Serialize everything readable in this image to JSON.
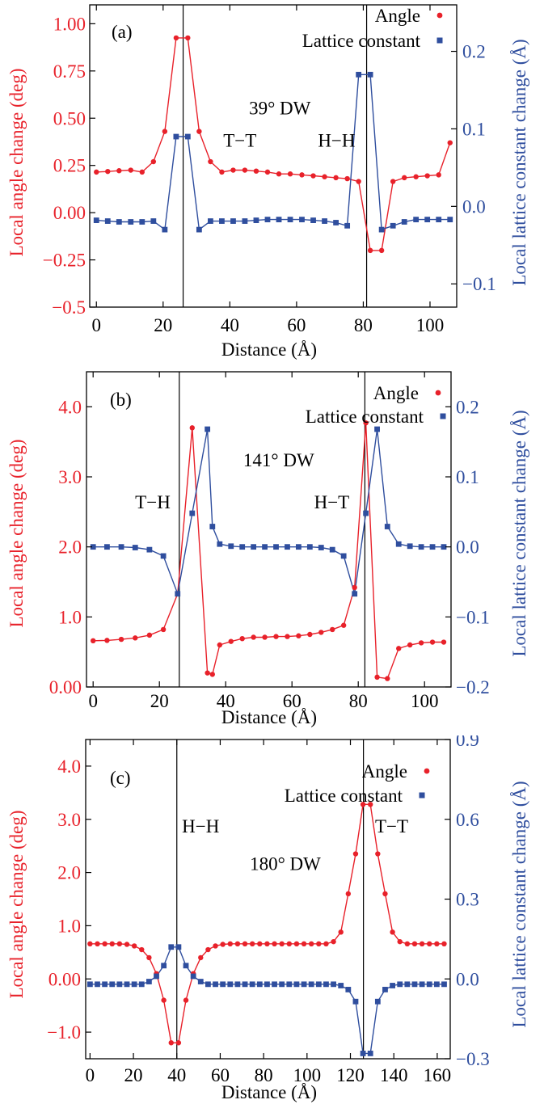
{
  "chart_data": [
    {
      "type": "line",
      "panel_label": "(a)",
      "xlabel": "Distance (Å)",
      "ylabel_left": "Local angle change (deg)",
      "ylabel_right": "Local lattice constant change (Å)",
      "xlim": [
        -2,
        108
      ],
      "ylim_left": [
        -0.5,
        1.1
      ],
      "ylim_right": [
        -0.13,
        0.26
      ],
      "xticks": [
        0,
        20,
        40,
        60,
        80,
        100
      ],
      "xtick_labels": [
        "0",
        "20",
        "40",
        "60",
        "80",
        "100"
      ],
      "yticks_left": [
        -0.5,
        -0.25,
        0,
        0.25,
        0.5,
        0.75,
        1.0
      ],
      "ytick_labels_left": [
        "−0.5",
        "−0.25",
        "0.00",
        "0.25",
        "0.50",
        "0.75",
        "1.00"
      ],
      "yticks_right": [
        -0.1,
        0,
        0.1,
        0.2
      ],
      "ytick_labels_right": [
        "−0.1",
        "0.0",
        "0.1",
        "0.2"
      ],
      "legend": [
        {
          "label": "Angle",
          "color": "#e8212a",
          "marker": "circle"
        },
        {
          "label": "Lattice constant",
          "color": "#2f4e9e",
          "marker": "square"
        }
      ],
      "walls": [
        26,
        81
      ],
      "annotations": [
        {
          "text": "39° DW",
          "x": 55,
          "y": 0.52
        },
        {
          "text": "T−T",
          "x": 43,
          "y": 0.35
        },
        {
          "text": "H−H",
          "x": 72,
          "y": 0.35
        }
      ],
      "series": [
        {
          "name": "Angle",
          "axis": "left",
          "color": "#e8212a",
          "marker": "circle",
          "x": [
            0,
            3.4,
            6.8,
            10.3,
            13.7,
            17.1,
            20.5,
            23.9,
            27.4,
            30.8,
            34.2,
            37.6,
            41.0,
            44.5,
            47.9,
            51.3,
            54.7,
            58.1,
            61.6,
            65.0,
            68.4,
            71.8,
            75.2,
            78.6,
            82.1,
            85.5,
            88.9,
            92.3,
            95.8,
            99.2,
            102.6,
            106.0
          ],
          "y": [
            0.215,
            0.218,
            0.222,
            0.225,
            0.215,
            0.27,
            0.43,
            0.925,
            0.925,
            0.43,
            0.27,
            0.215,
            0.225,
            0.225,
            0.22,
            0.215,
            0.205,
            0.205,
            0.2,
            0.195,
            0.19,
            0.185,
            0.18,
            0.165,
            -0.2,
            -0.2,
            0.165,
            0.185,
            0.19,
            0.195,
            0.2,
            0.37
          ]
        },
        {
          "name": "Lattice constant",
          "axis": "right",
          "color": "#2f4e9e",
          "marker": "square",
          "x": [
            0,
            3.4,
            6.8,
            10.3,
            13.7,
            17.1,
            20.5,
            23.9,
            27.4,
            30.8,
            34.2,
            37.6,
            41.0,
            44.5,
            47.9,
            51.3,
            54.7,
            58.1,
            61.6,
            65.0,
            68.4,
            71.8,
            75.2,
            78.6,
            82.1,
            85.5,
            88.9,
            92.3,
            95.8,
            99.2,
            102.6,
            106.0
          ],
          "y": [
            -0.018,
            -0.019,
            -0.02,
            -0.02,
            -0.02,
            -0.019,
            -0.03,
            0.09,
            0.09,
            -0.03,
            -0.019,
            -0.019,
            -0.019,
            -0.019,
            -0.018,
            -0.017,
            -0.017,
            -0.017,
            -0.017,
            -0.018,
            -0.019,
            -0.021,
            -0.025,
            0.17,
            0.17,
            -0.03,
            -0.025,
            -0.02,
            -0.017,
            -0.017,
            -0.017,
            -0.017
          ]
        }
      ]
    },
    {
      "type": "line",
      "panel_label": "(b)",
      "xlabel": "Distance (Å)",
      "ylabel_left": "Local angle change (deg)",
      "ylabel_right": "Local lattice constant change (Å)",
      "xlim": [
        -2,
        108
      ],
      "ylim_left": [
        0,
        4.5
      ],
      "ylim_right": [
        -0.2,
        0.25
      ],
      "xticks": [
        0,
        20,
        40,
        60,
        80,
        100
      ],
      "xtick_labels": [
        "0",
        "20",
        "40",
        "60",
        "80",
        "100"
      ],
      "yticks_left": [
        0,
        1,
        2,
        3,
        4
      ],
      "ytick_labels_left": [
        "0.00",
        "1.0",
        "2.0",
        "3.0",
        "4.0"
      ],
      "yticks_right": [
        -0.2,
        -0.1,
        0,
        0.1,
        0.2
      ],
      "ytick_labels_right": [
        "−0.2",
        "−0.1",
        "0.0",
        "0.1",
        "0.2"
      ],
      "legend": [
        {
          "label": "Angle",
          "color": "#e8212a",
          "marker": "circle"
        },
        {
          "label": "Lattice constant",
          "color": "#2f4e9e",
          "marker": "square"
        }
      ],
      "walls": [
        26,
        82
      ],
      "annotations": [
        {
          "text": "141° DW",
          "x": 56,
          "y": 3.15
        },
        {
          "text": "T−H",
          "x": 18,
          "y": 2.55
        },
        {
          "text": "H−T",
          "x": 72,
          "y": 2.55
        }
      ],
      "series": [
        {
          "name": "Angle",
          "axis": "left",
          "color": "#e8212a",
          "marker": "circle",
          "x": [
            0,
            4.2,
            8.5,
            12.7,
            17.0,
            21.2,
            25.5,
            29.9,
            34.5,
            36.0,
            38.2,
            41.6,
            45.0,
            48.4,
            51.8,
            55.2,
            58.6,
            62.0,
            65.4,
            68.8,
            72.2,
            75.6,
            78.9,
            82.3,
            85.7,
            88.8,
            92.2,
            95.6,
            99.0,
            102.4,
            105.8
          ],
          "y": [
            0.66,
            0.665,
            0.68,
            0.7,
            0.74,
            0.82,
            1.33,
            3.7,
            0.2,
            0.18,
            0.6,
            0.65,
            0.69,
            0.71,
            0.71,
            0.72,
            0.72,
            0.73,
            0.75,
            0.78,
            0.82,
            0.88,
            1.42,
            3.77,
            0.14,
            0.12,
            0.55,
            0.6,
            0.63,
            0.64,
            0.64
          ]
        },
        {
          "name": "Lattice constant",
          "axis": "right",
          "color": "#2f4e9e",
          "marker": "square",
          "x": [
            0,
            4.2,
            8.5,
            12.7,
            17.0,
            21.2,
            25.5,
            29.9,
            34.5,
            36.0,
            38.2,
            41.6,
            45.0,
            48.4,
            51.8,
            55.2,
            58.6,
            62.0,
            65.4,
            68.8,
            72.2,
            75.6,
            78.9,
            82.3,
            85.7,
            88.8,
            92.2,
            95.6,
            99.0,
            102.4,
            105.8
          ],
          "y": [
            0.0,
            0.0,
            0.0,
            -0.001,
            -0.004,
            -0.013,
            -0.067,
            0.048,
            0.168,
            0.029,
            0.004,
            0.001,
            0.0,
            0.0,
            0.0,
            0.0,
            0.0,
            0.0,
            0.0,
            -0.001,
            -0.004,
            -0.013,
            -0.067,
            0.048,
            0.168,
            0.029,
            0.004,
            0.001,
            0.0,
            0.0,
            0.0
          ]
        }
      ]
    },
    {
      "type": "line",
      "panel_label": "(c)",
      "xlabel": "Distance (Å)",
      "ylabel_left": "Local angle change (deg)",
      "ylabel_right": "Local lattice constant change (Å)",
      "xlim": [
        -2,
        166
      ],
      "ylim_left": [
        -1.5,
        4.5
      ],
      "ylim_right": [
        -0.3,
        0.9
      ],
      "xticks": [
        0,
        20,
        40,
        60,
        80,
        100,
        120,
        140,
        160
      ],
      "xtick_labels": [
        "0",
        "20",
        "40",
        "60",
        "80",
        "100",
        "120",
        "140",
        "160"
      ],
      "yticks_left": [
        -1,
        0,
        1,
        2,
        3,
        4
      ],
      "ytick_labels_left": [
        "−1.0",
        "0.00",
        "1.0",
        "2.0",
        "3.0",
        "4.0"
      ],
      "yticks_right": [
        -0.3,
        0,
        0.3,
        0.6,
        0.9
      ],
      "ytick_labels_right": [
        "−0.3",
        "0.0",
        "0.3",
        "0.6",
        "0.9"
      ],
      "legend": [
        {
          "label": "Angle",
          "color": "#e8212a",
          "marker": "circle"
        },
        {
          "label": "Lattice constant",
          "color": "#2f4e9e",
          "marker": "square"
        }
      ],
      "walls": [
        40,
        126
      ],
      "annotations": [
        {
          "text": "H−H",
          "x": 51,
          "y": 2.75
        },
        {
          "text": "180° DW",
          "x": 90,
          "y": 2.05
        },
        {
          "text": "T−T",
          "x": 139,
          "y": 2.75
        }
      ],
      "series": [
        {
          "name": "Angle",
          "axis": "left",
          "color": "#e8212a",
          "marker": "circle",
          "x": [
            0,
            3.4,
            6.8,
            10.2,
            13.6,
            17.0,
            20.4,
            23.8,
            27.2,
            30.6,
            34.0,
            37.4,
            40.8,
            44.2,
            47.6,
            51.0,
            54.4,
            57.8,
            61.2,
            64.6,
            68.0,
            71.4,
            74.8,
            78.2,
            81.6,
            85.0,
            88.4,
            91.8,
            95.2,
            98.6,
            102.0,
            105.4,
            108.8,
            112.2,
            115.6,
            119.0,
            122.4,
            125.8,
            129.2,
            132.6,
            136.0,
            139.4,
            142.8,
            146.2,
            149.6,
            153.0,
            156.4,
            159.8,
            163.2
          ],
          "y": [
            0.66,
            0.66,
            0.66,
            0.66,
            0.66,
            0.65,
            0.62,
            0.55,
            0.4,
            0.1,
            -0.4,
            -1.2,
            -1.2,
            -0.4,
            0.1,
            0.4,
            0.55,
            0.62,
            0.65,
            0.66,
            0.66,
            0.66,
            0.66,
            0.66,
            0.66,
            0.66,
            0.66,
            0.66,
            0.66,
            0.66,
            0.66,
            0.66,
            0.66,
            0.7,
            0.88,
            1.6,
            2.35,
            3.28,
            3.28,
            2.35,
            1.6,
            0.88,
            0.7,
            0.66,
            0.66,
            0.66,
            0.66,
            0.66,
            0.66
          ]
        },
        {
          "name": "Lattice constant",
          "axis": "right",
          "color": "#2f4e9e",
          "marker": "square",
          "x": [
            0,
            3.4,
            6.8,
            10.2,
            13.6,
            17.0,
            20.4,
            23.8,
            27.2,
            30.6,
            34.0,
            37.4,
            40.8,
            44.2,
            47.6,
            51.0,
            54.4,
            57.8,
            61.2,
            64.6,
            68.0,
            71.4,
            74.8,
            78.2,
            81.6,
            85.0,
            88.4,
            91.8,
            95.2,
            98.6,
            102.0,
            105.4,
            108.8,
            112.2,
            115.6,
            119.0,
            122.4,
            125.8,
            129.2,
            132.6,
            136.0,
            139.4,
            142.8,
            146.2,
            149.6,
            153.0,
            156.4,
            159.8,
            163.2
          ],
          "y": [
            -0.02,
            -0.02,
            -0.02,
            -0.02,
            -0.02,
            -0.02,
            -0.02,
            -0.02,
            -0.01,
            0.01,
            0.05,
            0.12,
            0.12,
            0.05,
            0.01,
            -0.01,
            -0.02,
            -0.02,
            -0.02,
            -0.02,
            -0.02,
            -0.02,
            -0.02,
            -0.02,
            -0.02,
            -0.02,
            -0.02,
            -0.02,
            -0.02,
            -0.02,
            -0.02,
            -0.02,
            -0.02,
            -0.02,
            -0.025,
            -0.04,
            -0.085,
            -0.28,
            -0.28,
            -0.085,
            -0.04,
            -0.025,
            -0.02,
            -0.02,
            -0.02,
            -0.02,
            -0.02,
            -0.02,
            -0.02
          ]
        }
      ]
    }
  ]
}
